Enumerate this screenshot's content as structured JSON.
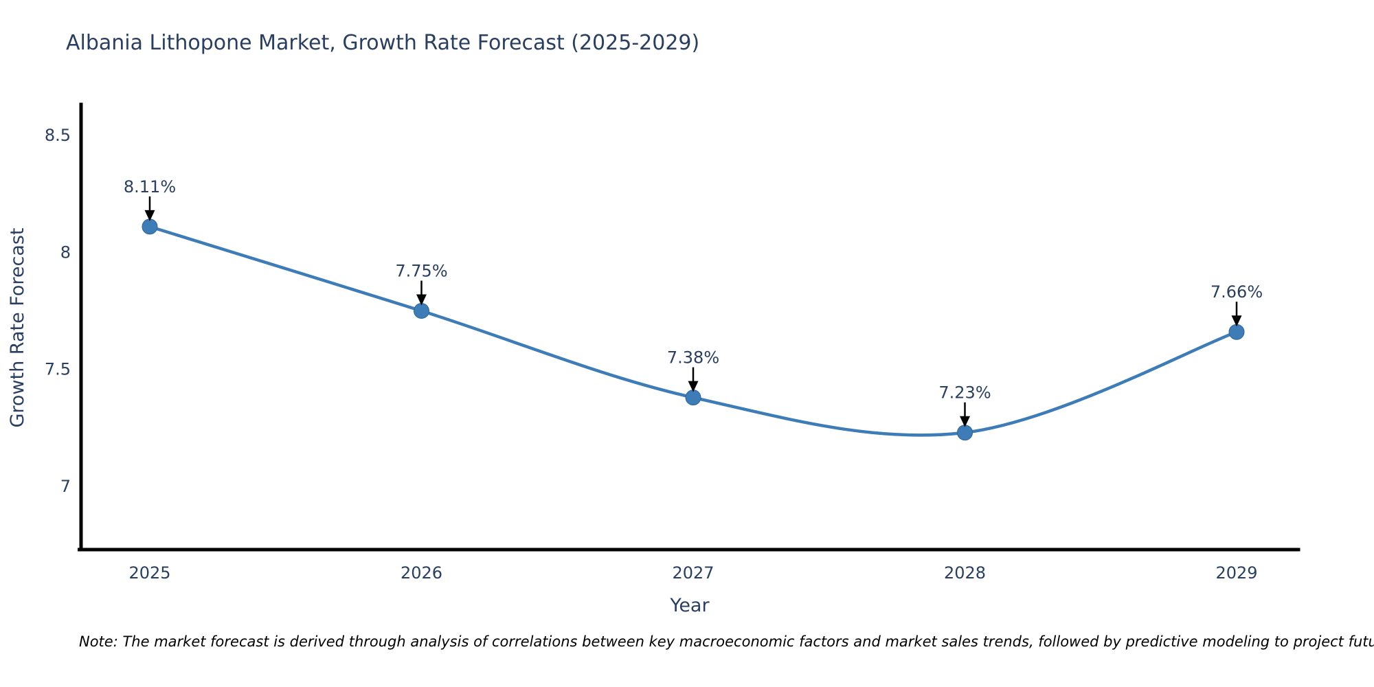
{
  "title": "Albania Lithopone Market, Growth Rate Forecast (2025-2029)",
  "footnote": "Note: The market forecast is derived through analysis of correlations between key macroeconomic factors and market sales trends, followed by predictive modeling to project future sales",
  "chart_data": {
    "type": "line",
    "title": "Albania Lithopone Market, Growth Rate Forecast (2025-2029)",
    "xlabel": "Year",
    "ylabel": "Growth Rate Forecast",
    "categories": [
      "2025",
      "2026",
      "2027",
      "2028",
      "2029"
    ],
    "series": [
      {
        "name": "Growth Rate Forecast",
        "values": [
          8.11,
          7.75,
          7.38,
          7.23,
          7.66
        ],
        "labels": [
          "8.11%",
          "7.75%",
          "7.38%",
          "7.23%",
          "7.66%"
        ]
      }
    ],
    "line_shape": "spline",
    "markers": true,
    "grid": false,
    "legend_position": "none",
    "yticks": [
      7,
      7.5,
      8,
      8.5
    ],
    "ylim": [
      6.73,
      8.64
    ],
    "colors": {
      "line": "#3E7CB8",
      "marker": "#3E7CB8",
      "marker_edge": "#2F6496",
      "text": "#2A3F5F",
      "arrow": "#000000",
      "axis_line": "#000000"
    }
  }
}
